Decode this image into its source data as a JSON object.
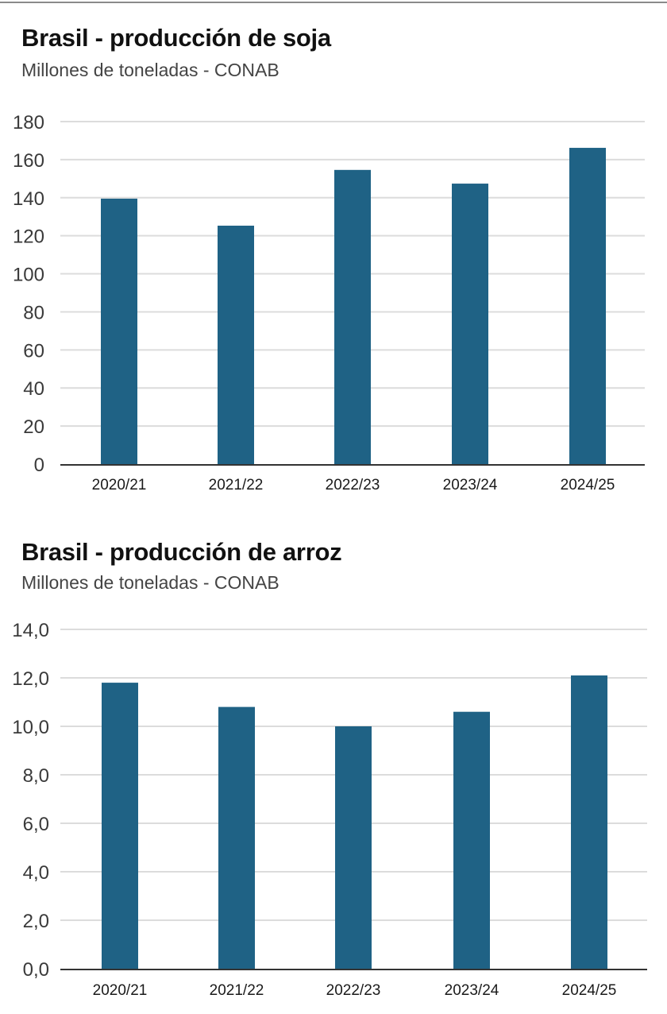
{
  "colors": {
    "bar": "#1f6285",
    "grid": "#dcdcdc",
    "axis": "#333333"
  },
  "chart_data": [
    {
      "type": "bar",
      "title": "Brasil - producción de soja",
      "subtitle": "Millones de toneladas - CONAB",
      "xlabel": "",
      "ylabel": "",
      "categories": [
        "2020/21",
        "2021/22",
        "2022/23",
        "2023/24",
        "2024/25"
      ],
      "values": [
        139.5,
        125.3,
        154.6,
        147.4,
        166.2
      ],
      "ylim": [
        0,
        180
      ],
      "yticks": [
        0,
        20,
        40,
        60,
        80,
        100,
        120,
        140,
        160,
        180
      ],
      "ytick_labels": [
        "0",
        "20",
        "40",
        "60",
        "80",
        "100",
        "120",
        "140",
        "160",
        "180"
      ],
      "grid": true,
      "legend": "none"
    },
    {
      "type": "bar",
      "title": "Brasil - producción de arroz",
      "subtitle": "Millones de toneladas - CONAB",
      "xlabel": "",
      "ylabel": "",
      "categories": [
        "2020/21",
        "2021/22",
        "2022/23",
        "2023/24",
        "2024/25"
      ],
      "values": [
        11.8,
        10.8,
        10.0,
        10.6,
        12.1
      ],
      "ylim": [
        0,
        14
      ],
      "yticks": [
        0,
        2,
        4,
        6,
        8,
        10,
        12,
        14
      ],
      "ytick_labels": [
        "0,0",
        "2,0",
        "4,0",
        "6,0",
        "8,0",
        "10,0",
        "12,0",
        "14,0"
      ],
      "grid": true,
      "legend": "none"
    }
  ]
}
